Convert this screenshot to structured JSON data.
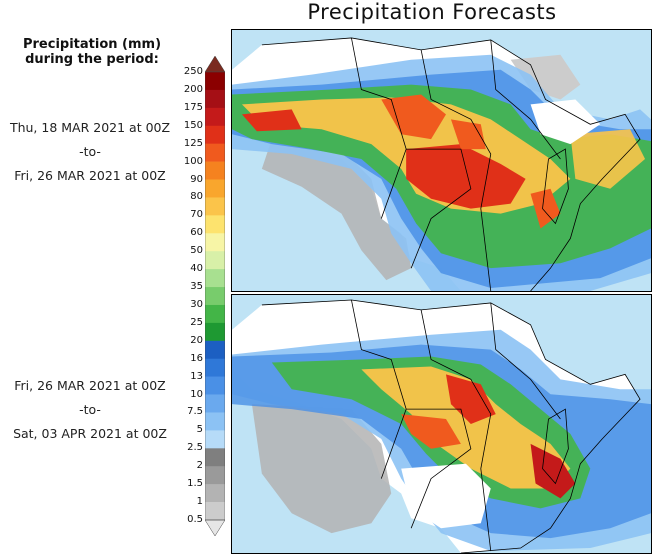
{
  "title": "Precipitation Forecasts",
  "legend_title_line1": "Precipitation (mm)",
  "legend_title_line2": "during the period:",
  "period1": {
    "start": "Thu, 18 MAR 2021 at 00Z",
    "sep": "-to-",
    "end": "Fri, 26 MAR 2021 at 00Z"
  },
  "period2": {
    "start": "Fri, 26 MAR 2021 at 00Z",
    "sep": "-to-",
    "end": "Sat, 03 APR 2021 at 00Z"
  },
  "colorbar": {
    "levels": [
      "250",
      "200",
      "175",
      "150",
      "125",
      "100",
      "90",
      "80",
      "70",
      "60",
      "50",
      "40",
      "35",
      "30",
      "25",
      "20",
      "16",
      "13",
      "10",
      "7.5",
      "5",
      "2.5",
      "2",
      "1.5",
      "1",
      "0.5"
    ],
    "colors": [
      "#7a2b20",
      "#8b0000",
      "#a50f15",
      "#c41a1a",
      "#e03018",
      "#f05a1e",
      "#f5821f",
      "#f9a62d",
      "#fbc44a",
      "#fde36e",
      "#f7f5a6",
      "#d8f0a8",
      "#a8e090",
      "#78cc6c",
      "#43b547",
      "#1e9932",
      "#1c5fc2",
      "#2f78d8",
      "#4a90e6",
      "#6aa9ee",
      "#8cc2f4",
      "#b6dbf8",
      "#7f7f7f",
      "#9a9a9a",
      "#b3b3b3",
      "#cccccc",
      "#e6e6e6"
    ]
  },
  "colors": {
    "ocean": "#bfe3f5",
    "land": "#ffffff",
    "border": "#000000"
  }
}
